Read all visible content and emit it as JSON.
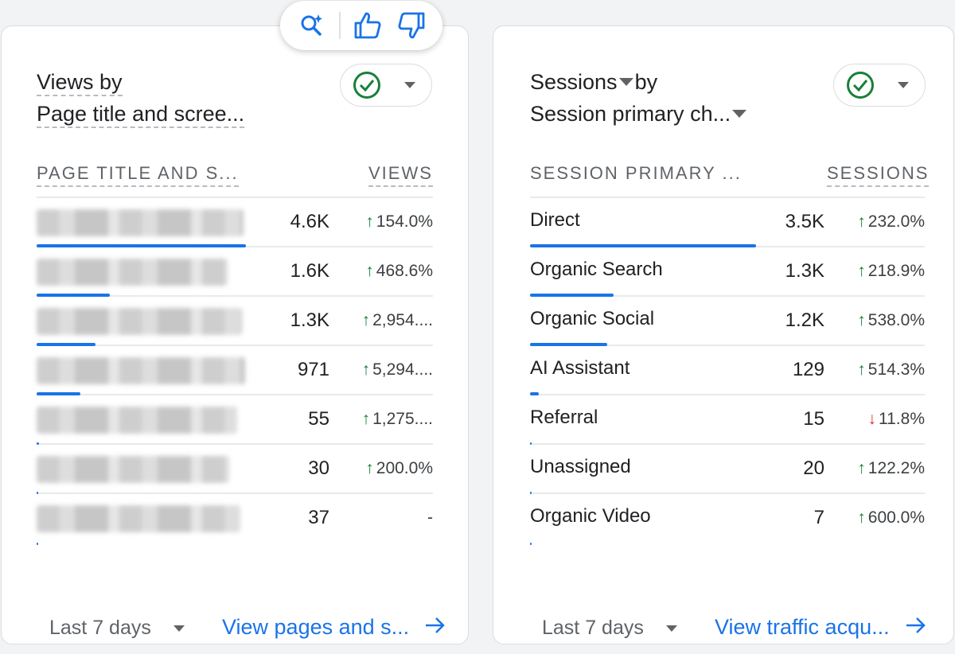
{
  "feedback_bar": {
    "icons": [
      "sparkle-search-icon",
      "thumbs-up-icon",
      "thumbs-down-icon"
    ]
  },
  "left_card": {
    "title_line1": "Views by",
    "title_line2": "Page title and scree...",
    "col_dimension": "PAGE TITLE AND S...",
    "col_metric": "VIEWS",
    "rows": [
      {
        "value": "4.6K",
        "change": "154.0%",
        "dir": "up",
        "share": 1.0
      },
      {
        "value": "1.6K",
        "change": "468.6%",
        "dir": "up",
        "share": 0.35
      },
      {
        "value": "1.3K",
        "change": "2,954....",
        "dir": "up",
        "share": 0.28
      },
      {
        "value": "971",
        "change": "5,294....",
        "dir": "up",
        "share": 0.21
      },
      {
        "value": "55",
        "change": "1,275....",
        "dir": "up",
        "share": 0.012
      },
      {
        "value": "30",
        "change": "200.0%",
        "dir": "up",
        "share": 0.006
      },
      {
        "value": "37",
        "change": "-",
        "dir": "none",
        "share": 0.008
      }
    ],
    "date_range": "Last 7 days",
    "link": "View pages and s..."
  },
  "right_card": {
    "title_line1": "Sessions",
    "title_by": "by",
    "title_line2": "Session primary ch...",
    "col_dimension": "SESSION PRIMARY ...",
    "col_metric": "SESSIONS",
    "rows": [
      {
        "label": "Direct",
        "value": "3.5K",
        "change": "232.0%",
        "dir": "up",
        "share": 1.0
      },
      {
        "label": "Organic Search",
        "value": "1.3K",
        "change": "218.9%",
        "dir": "up",
        "share": 0.37
      },
      {
        "label": "Organic Social",
        "value": "1.2K",
        "change": "538.0%",
        "dir": "up",
        "share": 0.34
      },
      {
        "label": "AI Assistant",
        "value": "129",
        "change": "514.3%",
        "dir": "up",
        "share": 0.037
      },
      {
        "label": "Referral",
        "value": "15",
        "change": "11.8%",
        "dir": "down",
        "share": 0.004
      },
      {
        "label": "Unassigned",
        "value": "20",
        "change": "122.2%",
        "dir": "up",
        "share": 0.006
      },
      {
        "label": "Organic Video",
        "value": "7",
        "change": "600.0%",
        "dir": "up",
        "share": 0.002
      }
    ],
    "date_range": "Last 7 days",
    "link": "View traffic acqu..."
  },
  "colors": {
    "accent": "#1a73e8",
    "up": "#188038",
    "down": "#d93025"
  }
}
